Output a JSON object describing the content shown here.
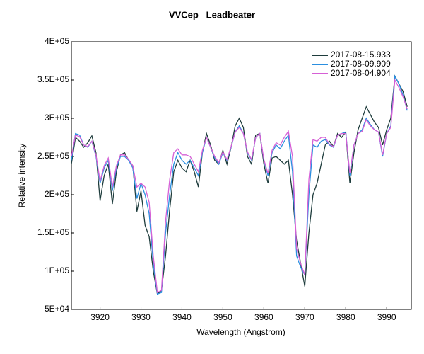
{
  "chart_data": {
    "type": "line",
    "title": "VVCep   Leadbeater",
    "x_label": "Wavelength (Angstrom)",
    "y_label": "Relative intensity",
    "xlim": [
      3913,
      3996
    ],
    "ylim": [
      50000,
      400000
    ],
    "xticks": [
      3920,
      3930,
      3940,
      3950,
      3960,
      3970,
      3980,
      3990
    ],
    "yticks": [
      {
        "value": 50000,
        "label": "5E+04"
      },
      {
        "value": 100000,
        "label": "1E+05"
      },
      {
        "value": 150000,
        "label": "1.5E+05"
      },
      {
        "value": 200000,
        "label": "2E+05"
      },
      {
        "value": 250000,
        "label": "2.5E+05"
      },
      {
        "value": 300000,
        "label": "3E+05"
      },
      {
        "value": 350000,
        "label": "3.5E+05"
      },
      {
        "value": 400000,
        "label": "4E+05"
      }
    ],
    "grid": false,
    "legend": "upper right",
    "x": [
      3913,
      3914,
      3915,
      3916,
      3917,
      3918,
      3919,
      3920,
      3921,
      3922,
      3923,
      3924,
      3925,
      3926,
      3927,
      3928,
      3929,
      3930,
      3931,
      3932,
      3933,
      3934,
      3935,
      3936,
      3937,
      3938,
      3939,
      3940,
      3941,
      3942,
      3943,
      3944,
      3945,
      3946,
      3947,
      3948,
      3949,
      3950,
      3951,
      3952,
      3953,
      3954,
      3955,
      3956,
      3957,
      3958,
      3959,
      3960,
      3961,
      3962,
      3963,
      3964,
      3965,
      3966,
      3967,
      3968,
      3969,
      3970,
      3971,
      3972,
      3973,
      3974,
      3975,
      3976,
      3977,
      3978,
      3979,
      3980,
      3981,
      3982,
      3983,
      3984,
      3985,
      3986,
      3987,
      3988,
      3989,
      3990,
      3991,
      3992,
      3993,
      3994,
      3995
    ],
    "series": [
      {
        "name": "2017-08-15.933",
        "color": "#1e3c3c",
        "values": [
          240000,
          275000,
          270000,
          262000,
          268000,
          277000,
          255000,
          192000,
          225000,
          240000,
          188000,
          230000,
          252000,
          255000,
          245000,
          238000,
          178000,
          205000,
          160000,
          145000,
          100000,
          70000,
          75000,
          120000,
          180000,
          230000,
          245000,
          235000,
          230000,
          245000,
          230000,
          210000,
          255000,
          280000,
          265000,
          245000,
          240000,
          258000,
          240000,
          262000,
          290000,
          300000,
          288000,
          250000,
          240000,
          278000,
          280000,
          240000,
          215000,
          248000,
          250000,
          245000,
          240000,
          245000,
          200000,
          140000,
          110000,
          80000,
          150000,
          200000,
          215000,
          240000,
          265000,
          270000,
          263000,
          280000,
          275000,
          282000,
          215000,
          255000,
          285000,
          300000,
          315000,
          305000,
          295000,
          288000,
          265000,
          285000,
          300000,
          355000,
          345000,
          335000,
          315000
        ]
      },
      {
        "name": "2017-08-09.909",
        "color": "#2b8fe0",
        "values": [
          245000,
          280000,
          278000,
          265000,
          262000,
          270000,
          250000,
          215000,
          235000,
          245000,
          205000,
          235000,
          250000,
          250000,
          245000,
          235000,
          195000,
          215000,
          200000,
          175000,
          110000,
          70000,
          72000,
          150000,
          200000,
          240000,
          255000,
          245000,
          240000,
          245000,
          235000,
          225000,
          255000,
          275000,
          262000,
          248000,
          240000,
          255000,
          245000,
          262000,
          282000,
          290000,
          280000,
          255000,
          245000,
          275000,
          280000,
          245000,
          225000,
          255000,
          265000,
          260000,
          270000,
          278000,
          230000,
          120000,
          105000,
          95000,
          200000,
          265000,
          262000,
          270000,
          272000,
          265000,
          262000,
          278000,
          280000,
          282000,
          225000,
          265000,
          280000,
          285000,
          300000,
          292000,
          285000,
          282000,
          250000,
          280000,
          290000,
          355000,
          345000,
          330000,
          310000
        ]
      },
      {
        "name": "2017-08-04.904",
        "color": "#d660d6",
        "values": [
          250000,
          278000,
          276000,
          265000,
          263000,
          270000,
          252000,
          218000,
          238000,
          248000,
          210000,
          238000,
          252000,
          252000,
          246000,
          238000,
          210000,
          215000,
          210000,
          190000,
          120000,
          72000,
          75000,
          165000,
          220000,
          255000,
          260000,
          252000,
          252000,
          250000,
          240000,
          230000,
          258000,
          275000,
          262000,
          250000,
          242000,
          256000,
          246000,
          263000,
          282000,
          288000,
          280000,
          256000,
          246000,
          275000,
          280000,
          246000,
          228000,
          258000,
          268000,
          265000,
          275000,
          283000,
          250000,
          130000,
          110000,
          95000,
          220000,
          272000,
          270000,
          275000,
          275000,
          266000,
          263000,
          278000,
          280000,
          280000,
          228000,
          265000,
          280000,
          283000,
          298000,
          290000,
          285000,
          282000,
          252000,
          280000,
          288000,
          350000,
          340000,
          328000,
          312000
        ]
      }
    ]
  }
}
